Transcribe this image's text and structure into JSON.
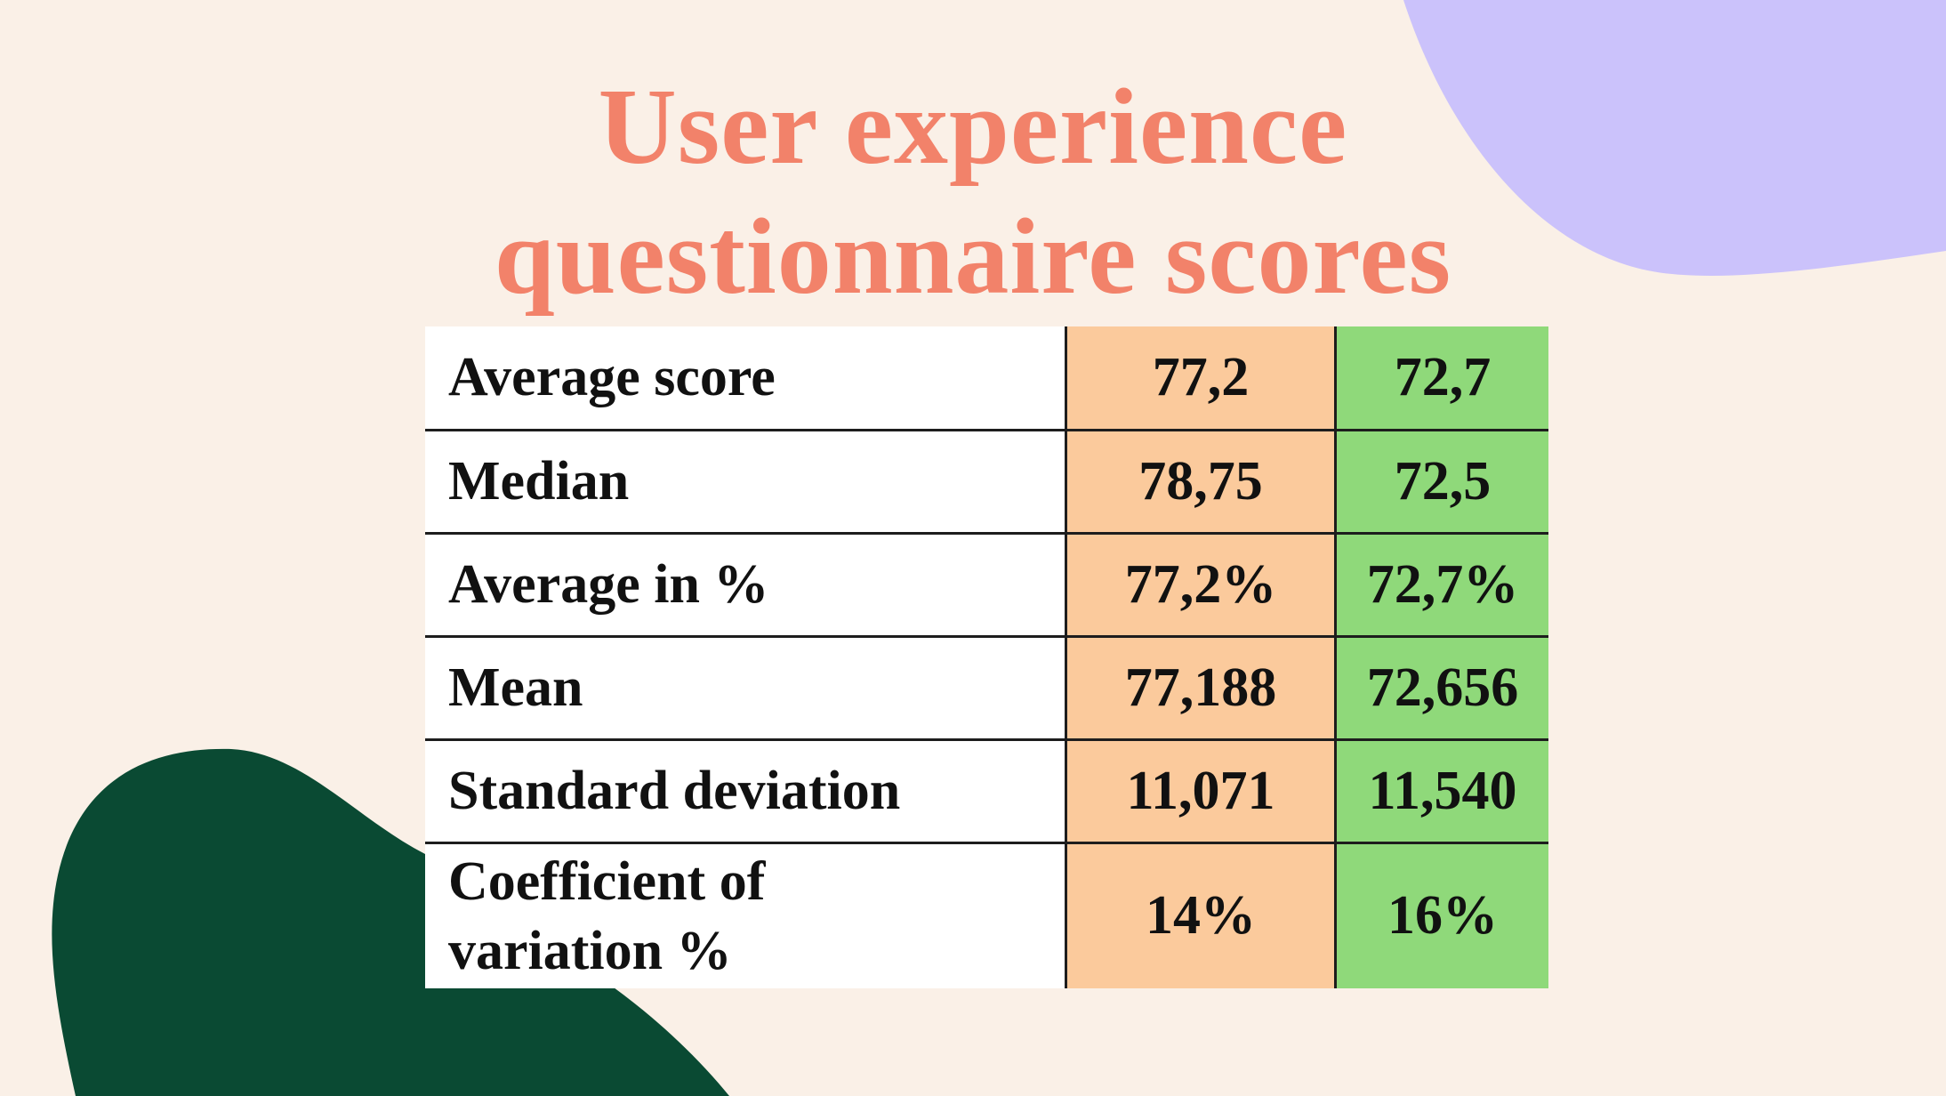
{
  "slide": {
    "title_line_1": "User experience",
    "title_line_2": "questionnaire scores"
  },
  "colors": {
    "background": "#faf0e7",
    "title": "#f2826a",
    "column_a_fill": "#fbca9c",
    "column_b_fill": "#8fd97a",
    "shape_purple": "#cbc2fb",
    "shape_green": "#0a4a33"
  },
  "table": {
    "rows": [
      {
        "label": "Average score",
        "a": "77,2",
        "b": "72,7"
      },
      {
        "label": "Median",
        "a": "78,75",
        "b": "72,5"
      },
      {
        "label": "Average in %",
        "a": "77,2%",
        "b": "72,7%"
      },
      {
        "label": "Mean",
        "a": "77,188",
        "b": "72,656"
      },
      {
        "label": "Standard deviation",
        "a": "11,071",
        "b": "11,540"
      },
      {
        "label_line_1": "Coefficient of",
        "label_line_2": "variation %",
        "a": "14%",
        "b": "16%"
      }
    ]
  }
}
